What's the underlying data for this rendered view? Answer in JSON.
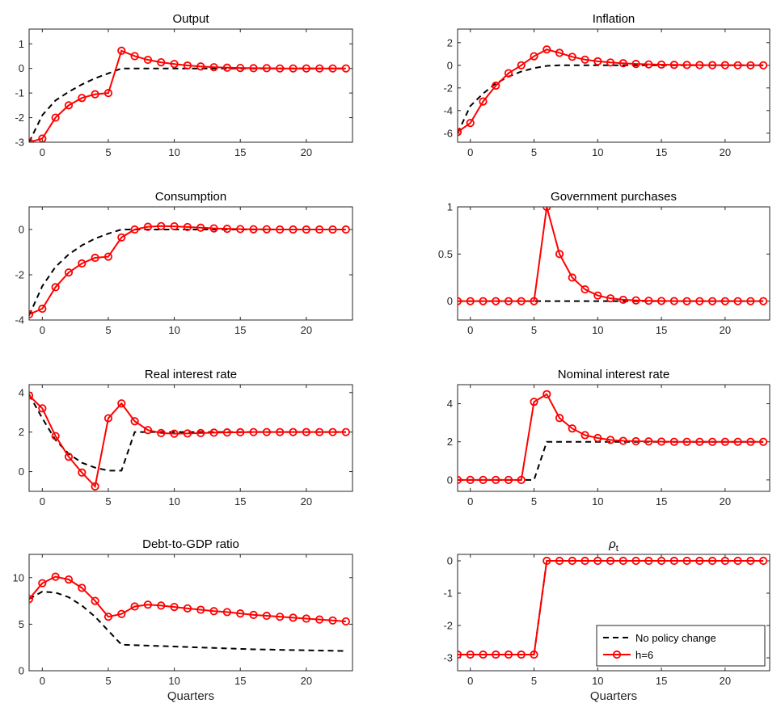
{
  "colors": {
    "series_h6": "#ff0000",
    "series_baseline": "#000000",
    "axes": "#262626"
  },
  "legend": {
    "entries": [
      "No policy change",
      "h=6"
    ],
    "placement": "bottom-right of last panel"
  },
  "chart_data": [
    {
      "type": "line",
      "title": "Output",
      "xlabel": "",
      "xlim": [
        -1,
        23.5
      ],
      "ylim": [
        -3,
        1.6
      ],
      "xticks": [
        0,
        5,
        10,
        15,
        20
      ],
      "yticks": [
        -3,
        -2,
        -1,
        0,
        1
      ],
      "x": [
        -1,
        0,
        1,
        2,
        3,
        4,
        5,
        6,
        7,
        8,
        9,
        10,
        11,
        12,
        13,
        14,
        15,
        16,
        17,
        18,
        19,
        20,
        21,
        22,
        23
      ],
      "series": [
        {
          "name": "No policy change",
          "style": "dashed",
          "values": [
            -3.0,
            -1.9,
            -1.3,
            -0.95,
            -0.65,
            -0.4,
            -0.2,
            0,
            0,
            0,
            0,
            0,
            0,
            0,
            0,
            0,
            0,
            0,
            0,
            0,
            0,
            0,
            0,
            0,
            0
          ]
        },
        {
          "name": "h=6",
          "style": "solid-circle",
          "values": [
            -3.0,
            -2.85,
            -2.0,
            -1.5,
            -1.2,
            -1.05,
            -1.0,
            0.72,
            0.5,
            0.35,
            0.25,
            0.18,
            0.12,
            0.08,
            0.05,
            0.03,
            0.02,
            0.01,
            0.01,
            0,
            0,
            0,
            0,
            0,
            0
          ]
        }
      ]
    },
    {
      "type": "line",
      "title": "Inflation",
      "xlabel": "",
      "xlim": [
        -1,
        23.5
      ],
      "ylim": [
        -6.8,
        3.2
      ],
      "xticks": [
        0,
        5,
        10,
        15,
        20
      ],
      "yticks": [
        -6,
        -4,
        -2,
        0,
        2
      ],
      "x": [
        -1,
        0,
        1,
        2,
        3,
        4,
        5,
        6,
        7,
        8,
        9,
        10,
        11,
        12,
        13,
        14,
        15,
        16,
        17,
        18,
        19,
        20,
        21,
        22,
        23
      ],
      "series": [
        {
          "name": "No policy change",
          "style": "dashed",
          "values": [
            -6.0,
            -3.6,
            -2.5,
            -1.6,
            -1.0,
            -0.55,
            -0.25,
            -0.05,
            0,
            0,
            0,
            0,
            0,
            0,
            0,
            0,
            0,
            0,
            0,
            0,
            0,
            0,
            0,
            0,
            0
          ]
        },
        {
          "name": "h=6",
          "style": "solid-circle",
          "values": [
            -5.9,
            -5.1,
            -3.2,
            -1.8,
            -0.7,
            0.0,
            0.8,
            1.4,
            1.1,
            0.75,
            0.5,
            0.35,
            0.25,
            0.18,
            0.12,
            0.08,
            0.06,
            0.04,
            0.03,
            0.02,
            0.01,
            0.01,
            0,
            0,
            0
          ]
        }
      ]
    },
    {
      "type": "line",
      "title": "Consumption",
      "xlabel": "",
      "xlim": [
        -1,
        23.5
      ],
      "ylim": [
        -4,
        1
      ],
      "xticks": [
        0,
        5,
        10,
        15,
        20
      ],
      "yticks": [
        -4,
        -2,
        0
      ],
      "x": [
        -1,
        0,
        1,
        2,
        3,
        4,
        5,
        6,
        7,
        8,
        9,
        10,
        11,
        12,
        13,
        14,
        15,
        16,
        17,
        18,
        19,
        20,
        21,
        22,
        23
      ],
      "series": [
        {
          "name": "No policy change",
          "style": "dashed",
          "values": [
            -3.8,
            -2.5,
            -1.65,
            -1.1,
            -0.7,
            -0.4,
            -0.18,
            0,
            0,
            0,
            0,
            0,
            0,
            0,
            0,
            0,
            0,
            0,
            0,
            0,
            0,
            0,
            0,
            0,
            0
          ]
        },
        {
          "name": "h=6",
          "style": "solid-circle",
          "values": [
            -3.75,
            -3.5,
            -2.55,
            -1.9,
            -1.5,
            -1.25,
            -1.2,
            -0.35,
            0.0,
            0.12,
            0.15,
            0.14,
            0.11,
            0.08,
            0.05,
            0.03,
            0.02,
            0.01,
            0.01,
            0,
            0,
            0,
            0,
            0,
            0
          ]
        }
      ]
    },
    {
      "type": "line",
      "title": "Government purchases",
      "xlabel": "",
      "xlim": [
        -1,
        23.5
      ],
      "ylim": [
        -0.2,
        1
      ],
      "xticks": [
        0,
        5,
        10,
        15,
        20
      ],
      "yticks": [
        0,
        0.5,
        1
      ],
      "x": [
        -1,
        0,
        1,
        2,
        3,
        4,
        5,
        6,
        7,
        8,
        9,
        10,
        11,
        12,
        13,
        14,
        15,
        16,
        17,
        18,
        19,
        20,
        21,
        22,
        23
      ],
      "series": [
        {
          "name": "No policy change",
          "style": "dashed",
          "values": [
            0,
            0,
            0,
            0,
            0,
            0,
            0,
            0,
            0,
            0,
            0,
            0,
            0,
            0,
            0,
            0,
            0,
            0,
            0,
            0,
            0,
            0,
            0,
            0,
            0
          ]
        },
        {
          "name": "h=6",
          "style": "solid-circle",
          "values": [
            0,
            0,
            0,
            0,
            0,
            0,
            0,
            1.0,
            0.5,
            0.25,
            0.125,
            0.06,
            0.03,
            0.015,
            0.008,
            0.004,
            0.002,
            0.001,
            0,
            0,
            0,
            0,
            0,
            0,
            0
          ]
        }
      ]
    },
    {
      "type": "line",
      "title": "Real interest rate",
      "xlabel": "",
      "xlim": [
        -1,
        23.5
      ],
      "ylim": [
        -1,
        4.4
      ],
      "xticks": [
        0,
        5,
        10,
        15,
        20
      ],
      "yticks": [
        0,
        2,
        4
      ],
      "x": [
        -1,
        0,
        1,
        2,
        3,
        4,
        5,
        6,
        7,
        8,
        9,
        10,
        11,
        12,
        13,
        14,
        15,
        16,
        17,
        18,
        19,
        20,
        21,
        22,
        23
      ],
      "series": [
        {
          "name": "No policy change",
          "style": "dashed",
          "values": [
            3.9,
            2.7,
            1.6,
            0.9,
            0.45,
            0.2,
            0.05,
            0.05,
            2.0,
            2.0,
            2.0,
            2.0,
            2.0,
            2.0,
            2.0,
            2.0,
            2.0,
            2.0,
            2.0,
            2.0,
            2.0,
            2.0,
            2.0,
            2.0,
            2.0
          ]
        },
        {
          "name": "h=6",
          "style": "solid-circle",
          "values": [
            3.85,
            3.2,
            1.8,
            0.75,
            -0.05,
            -0.75,
            2.7,
            3.45,
            2.55,
            2.1,
            1.95,
            1.92,
            1.93,
            1.95,
            1.97,
            1.98,
            1.99,
            2.0,
            2.0,
            2.0,
            2.0,
            2.0,
            2.0,
            2.0,
            2.0
          ]
        }
      ]
    },
    {
      "type": "line",
      "title": "Nominal interest rate",
      "xlabel": "",
      "xlim": [
        -1,
        23.5
      ],
      "ylim": [
        -0.6,
        5
      ],
      "xticks": [
        0,
        5,
        10,
        15,
        20
      ],
      "yticks": [
        0,
        2,
        4
      ],
      "x": [
        -1,
        0,
        1,
        2,
        3,
        4,
        5,
        6,
        7,
        8,
        9,
        10,
        11,
        12,
        13,
        14,
        15,
        16,
        17,
        18,
        19,
        20,
        21,
        22,
        23
      ],
      "series": [
        {
          "name": "No policy change",
          "style": "dashed",
          "values": [
            0,
            0,
            0,
            0,
            0,
            0,
            0,
            2.0,
            2.0,
            2.0,
            2.0,
            2.0,
            2.0,
            2.0,
            2.0,
            2.0,
            2.0,
            2.0,
            2.0,
            2.0,
            2.0,
            2.0,
            2.0,
            2.0,
            2.0
          ]
        },
        {
          "name": "h=6",
          "style": "solid-circle",
          "values": [
            0,
            0,
            0,
            0,
            0,
            0,
            4.1,
            4.5,
            3.25,
            2.7,
            2.35,
            2.2,
            2.1,
            2.05,
            2.03,
            2.02,
            2.01,
            2.0,
            2.0,
            2.0,
            2.0,
            2.0,
            2.0,
            2.0,
            2.0
          ]
        }
      ]
    },
    {
      "type": "line",
      "title": "Debt-to-GDP ratio",
      "xlabel": "Quarters",
      "xlim": [
        -1,
        23.5
      ],
      "ylim": [
        0,
        12.5
      ],
      "xticks": [
        0,
        5,
        10,
        15,
        20
      ],
      "yticks": [
        0,
        5,
        10
      ],
      "x": [
        -1,
        0,
        1,
        2,
        3,
        4,
        5,
        6,
        7,
        8,
        9,
        10,
        11,
        12,
        13,
        14,
        15,
        16,
        17,
        18,
        19,
        20,
        21,
        22,
        23
      ],
      "series": [
        {
          "name": "No policy change",
          "style": "dashed",
          "values": [
            7.7,
            8.5,
            8.4,
            7.9,
            7.0,
            5.8,
            4.3,
            2.8,
            2.75,
            2.7,
            2.65,
            2.6,
            2.55,
            2.5,
            2.45,
            2.4,
            2.35,
            2.3,
            2.28,
            2.25,
            2.22,
            2.2,
            2.17,
            2.15,
            2.12
          ]
        },
        {
          "name": "h=6",
          "style": "solid-circle",
          "values": [
            7.7,
            9.4,
            10.1,
            9.8,
            8.9,
            7.5,
            5.8,
            6.1,
            6.9,
            7.1,
            7.0,
            6.85,
            6.7,
            6.55,
            6.4,
            6.3,
            6.15,
            6.0,
            5.9,
            5.8,
            5.7,
            5.6,
            5.5,
            5.4,
            5.3
          ]
        }
      ]
    },
    {
      "type": "line",
      "title": "ρ",
      "title_subscript": "t",
      "xlabel": "Quarters",
      "xlim": [
        -1,
        23.5
      ],
      "ylim": [
        -3.4,
        0.2
      ],
      "xticks": [
        0,
        5,
        10,
        15,
        20
      ],
      "yticks": [
        -3,
        -2,
        -1,
        0
      ],
      "x": [
        -1,
        0,
        1,
        2,
        3,
        4,
        5,
        6,
        7,
        8,
        9,
        10,
        11,
        12,
        13,
        14,
        15,
        16,
        17,
        18,
        19,
        20,
        21,
        22,
        23
      ],
      "series": [
        {
          "name": "No policy change",
          "style": "dashed",
          "values": [
            -2.9,
            -2.9,
            -2.9,
            -2.9,
            -2.9,
            -2.9,
            -2.9,
            0,
            0,
            0,
            0,
            0,
            0,
            0,
            0,
            0,
            0,
            0,
            0,
            0,
            0,
            0,
            0,
            0,
            0
          ]
        },
        {
          "name": "h=6",
          "style": "solid-circle",
          "values": [
            -2.9,
            -2.9,
            -2.9,
            -2.9,
            -2.9,
            -2.9,
            -2.9,
            0,
            0,
            0,
            0,
            0,
            0,
            0,
            0,
            0,
            0,
            0,
            0,
            0,
            0,
            0,
            0,
            0,
            0
          ]
        }
      ],
      "has_legend": true
    }
  ]
}
